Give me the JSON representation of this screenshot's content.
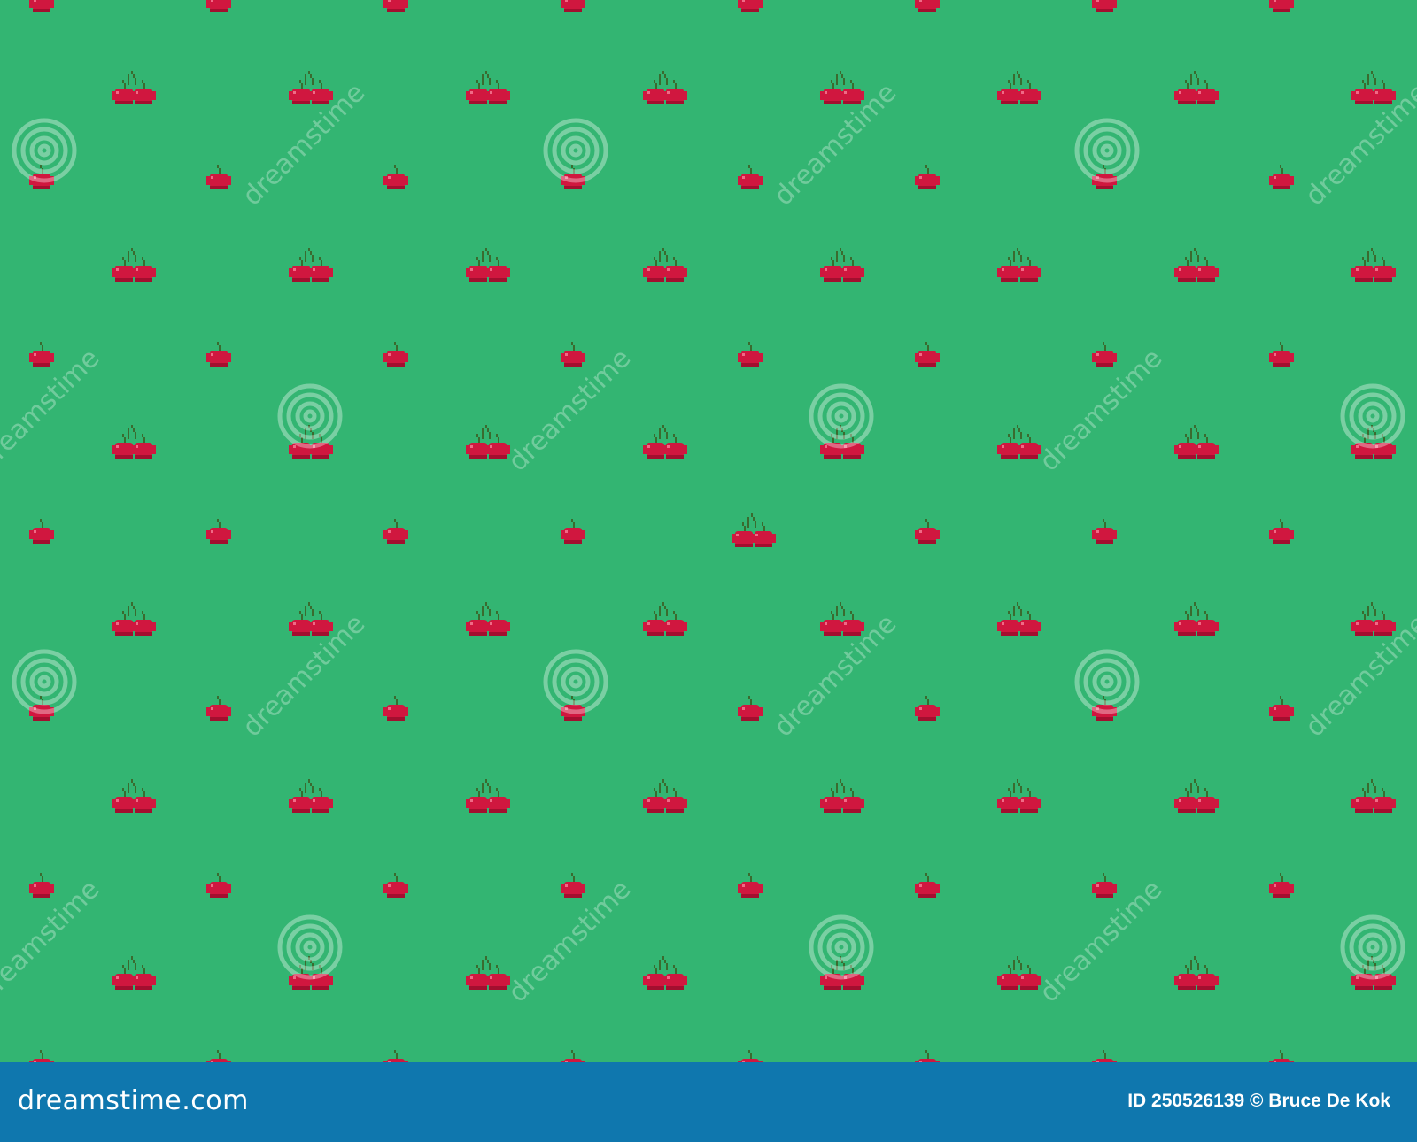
{
  "pattern": {
    "background_color": "#33b572",
    "cherry_color": "#d0173f",
    "stem_color": "#3a6b2f",
    "motifs": [
      "cherry-pair-icon",
      "single-cherry-icon"
    ]
  },
  "watermark": {
    "text": "dreamstime",
    "icon": "spiral-logo-icon"
  },
  "footer": {
    "background_color": "#0f77ae",
    "logo_text": "dreamstime.com",
    "credit": "ID 250526139 © Bruce De Kok"
  }
}
